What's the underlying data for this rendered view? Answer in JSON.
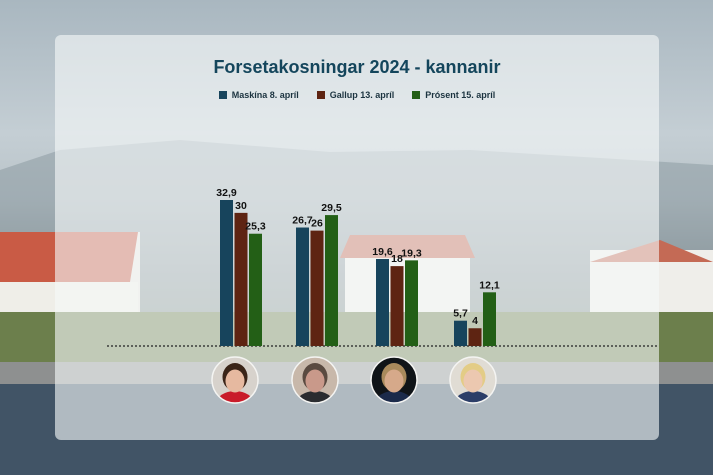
{
  "chart_data": {
    "type": "bar",
    "title": "Forsetakosningar 2024 - kannanir",
    "categories": [
      "",
      "",
      "",
      ""
    ],
    "series": [
      {
        "name": "Maskína 8. apríl",
        "color": "#17445c",
        "values": [
          32.9,
          26.7,
          19.6,
          5.7
        ],
        "labels": [
          "32,9",
          "26,7",
          "19,6",
          "5,7"
        ]
      },
      {
        "name": "Gallup 13. apríl",
        "color": "#5e2412",
        "values": [
          30,
          26,
          18,
          4
        ],
        "labels": [
          "30",
          "26",
          "18",
          "4"
        ]
      },
      {
        "name": "Prósent 15. apríl",
        "color": "#235f16",
        "values": [
          25.3,
          29.5,
          19.3,
          12.1
        ],
        "labels": [
          "25,3",
          "29,5",
          "19,3",
          "12,1"
        ]
      }
    ],
    "ylim": [
      0,
      35
    ],
    "grid": false,
    "legend_position": "top-center",
    "baseline_style": "dotted"
  },
  "candidates": [
    {
      "icon": "candidate-1-portrait-icon",
      "hair": "#3a2418",
      "skin": "#e6b9a0",
      "shirt": "#c91c2a",
      "bg": "#d7d2cc"
    },
    {
      "icon": "candidate-2-portrait-icon",
      "hair": "#5a4a40",
      "skin": "#c9998a",
      "shirt": "#2a2c30",
      "bg": "#c8b8aa"
    },
    {
      "icon": "candidate-3-portrait-icon",
      "hair": "#a98a5c",
      "skin": "#d6a98a",
      "shirt": "#1b2a4a",
      "bg": "#101418"
    },
    {
      "icon": "candidate-4-portrait-icon",
      "hair": "#e3cc86",
      "skin": "#ecc8b0",
      "shirt": "#2c3e68",
      "bg": "#e0dcd4"
    }
  ]
}
